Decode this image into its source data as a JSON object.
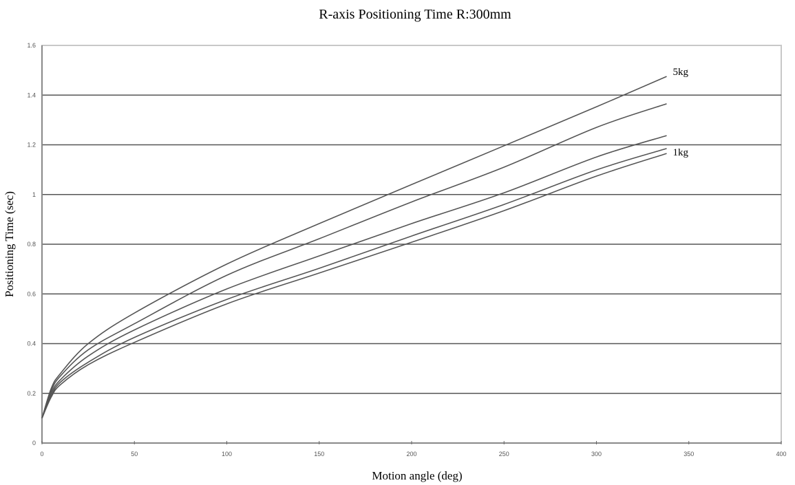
{
  "chart_data": {
    "type": "line",
    "title": "R-axis Positioning Time R:300mm",
    "xlabel": "Motion angle (deg)",
    "ylabel": "Positioning Time (sec)",
    "xlim": [
      0,
      400
    ],
    "ylim": [
      0,
      1.6
    ],
    "xticks": [
      0,
      50,
      100,
      150,
      200,
      250,
      300,
      350,
      400
    ],
    "yticks": [
      "0",
      "0.2",
      "0.4",
      "0.6",
      "0.8",
      "1",
      "1.2",
      "1.4",
      "1.6"
    ],
    "grid": "horizontal",
    "line_color": "#555555",
    "grid_color": "#555555",
    "x": [
      0,
      5,
      10,
      25,
      50,
      100,
      150,
      200,
      250,
      300,
      338
    ],
    "series": [
      {
        "label": "5kg",
        "values": [
          0.1,
          0.22,
          0.28,
          0.4,
          0.523,
          0.72,
          0.883,
          1.04,
          1.196,
          1.353,
          1.475
        ]
      },
      {
        "values": [
          0.1,
          0.21,
          0.27,
          0.375,
          0.48,
          0.675,
          0.822,
          0.97,
          1.11,
          1.27,
          1.365
        ]
      },
      {
        "values": [
          0.1,
          0.2,
          0.255,
          0.35,
          0.455,
          0.62,
          0.753,
          0.883,
          1.007,
          1.151,
          1.237
        ]
      },
      {
        "label": "1kg",
        "values": [
          0.1,
          0.19,
          0.245,
          0.325,
          0.425,
          0.578,
          0.703,
          0.833,
          0.96,
          1.099,
          1.185
        ]
      },
      {
        "values": [
          0.1,
          0.185,
          0.235,
          0.315,
          0.405,
          0.56,
          0.684,
          0.808,
          0.935,
          1.074,
          1.165
        ]
      }
    ]
  }
}
